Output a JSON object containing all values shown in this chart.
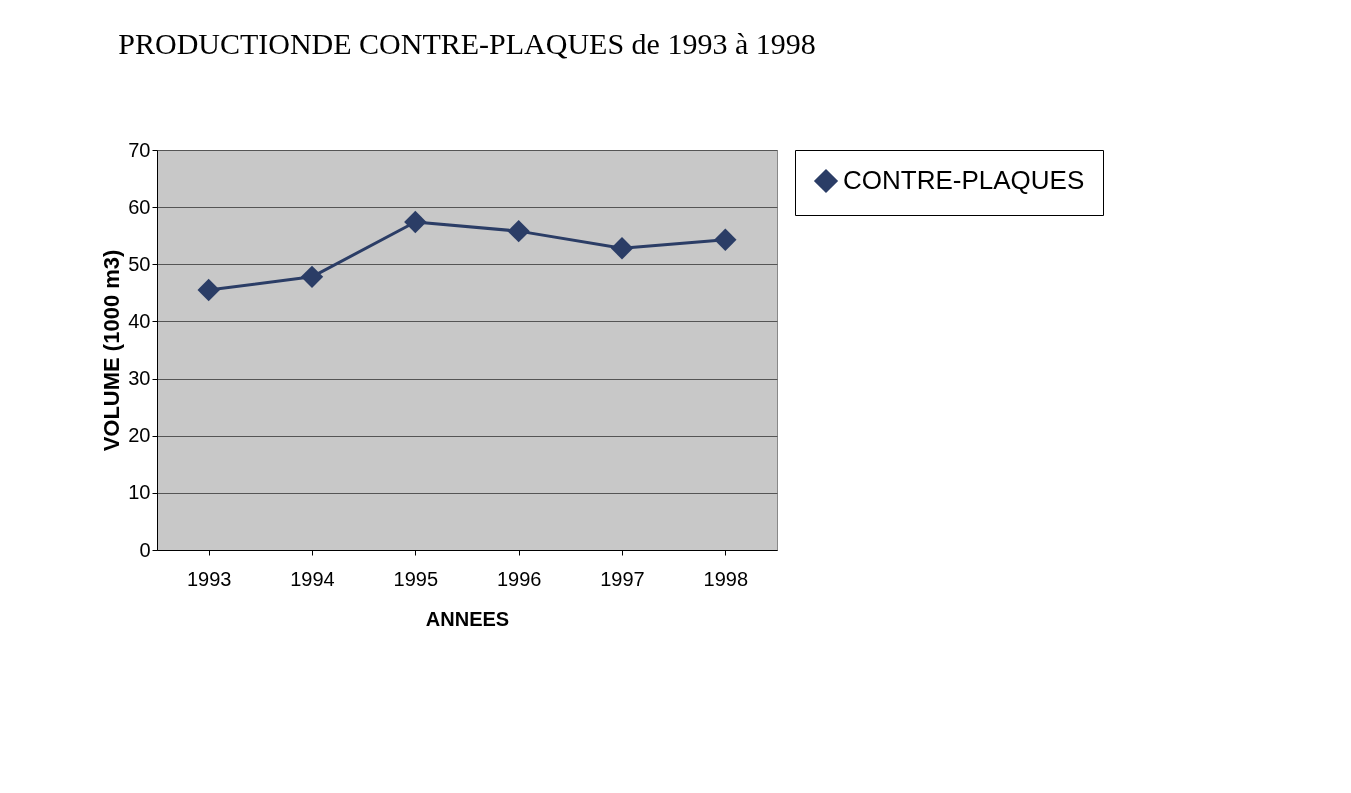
{
  "chart_data": {
    "type": "line",
    "title": "PRODUCTIONDE CONTRE-PLAQUES de 1993 à 1998",
    "xlabel": "ANNEES",
    "ylabel": "VOLUME (1000 m3)",
    "categories": [
      "1993",
      "1994",
      "1995",
      "1996",
      "1997",
      "1998"
    ],
    "series": [
      {
        "name": "CONTRE-PLAQUES",
        "color": "#2b3d66",
        "values": [
          45.5,
          47.8,
          57.4,
          55.8,
          52.8,
          54.3
        ]
      }
    ],
    "ylim": [
      0,
      70
    ],
    "yticks": [
      0,
      10,
      20,
      30,
      40,
      50,
      60,
      70
    ],
    "grid": "y",
    "legend": "right",
    "marker": "diamond",
    "line_style": "solid"
  }
}
